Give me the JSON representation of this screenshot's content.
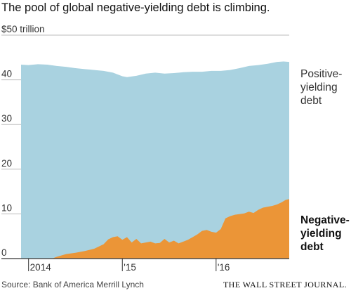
{
  "title": "The pool of global negative-yielding debt is climbing.",
  "source": "Source: Bank of America Merrill Lynch",
  "brand": "THE WALL STREET JOURNAL.",
  "colors": {
    "positive": "#a9d2e0",
    "negative": "#eb9537",
    "gridline": "#bbbbbb",
    "axis": "#333333"
  },
  "chart_data": {
    "type": "area",
    "stacked": true,
    "y_unit_label": "$50 trillion",
    "yticks": [
      0,
      10,
      20,
      30,
      40
    ],
    "ylim": [
      0,
      50
    ],
    "xlim": [
      2013.92,
      2016.78
    ],
    "xticks": [
      {
        "x": 2014.0,
        "label": "2014"
      },
      {
        "x": 2015.0,
        "label": "'15"
      },
      {
        "x": 2016.0,
        "label": "'16"
      }
    ],
    "grid": true,
    "series": [
      {
        "name": "Negative-yielding debt",
        "points": [
          [
            2013.92,
            0
          ],
          [
            2014.25,
            0
          ],
          [
            2014.3,
            0.4
          ],
          [
            2014.4,
            1.0
          ],
          [
            2014.5,
            1.3
          ],
          [
            2014.6,
            1.7
          ],
          [
            2014.7,
            2.2
          ],
          [
            2014.8,
            3.2
          ],
          [
            2014.85,
            4.3
          ],
          [
            2014.9,
            4.8
          ],
          [
            2014.95,
            5.0
          ],
          [
            2015.0,
            4.2
          ],
          [
            2015.05,
            4.8
          ],
          [
            2015.1,
            3.6
          ],
          [
            2015.15,
            4.4
          ],
          [
            2015.2,
            3.4
          ],
          [
            2015.25,
            3.6
          ],
          [
            2015.3,
            3.8
          ],
          [
            2015.35,
            3.4
          ],
          [
            2015.4,
            3.5
          ],
          [
            2015.45,
            4.4
          ],
          [
            2015.5,
            3.6
          ],
          [
            2015.55,
            4.0
          ],
          [
            2015.6,
            3.4
          ],
          [
            2015.65,
            3.8
          ],
          [
            2015.7,
            4.2
          ],
          [
            2015.75,
            4.8
          ],
          [
            2015.8,
            5.4
          ],
          [
            2015.85,
            6.2
          ],
          [
            2015.9,
            6.4
          ],
          [
            2015.95,
            6.0
          ],
          [
            2016.0,
            5.8
          ],
          [
            2016.05,
            6.6
          ],
          [
            2016.1,
            9.0
          ],
          [
            2016.15,
            9.5
          ],
          [
            2016.2,
            9.8
          ],
          [
            2016.3,
            10.1
          ],
          [
            2016.35,
            10.5
          ],
          [
            2016.4,
            10.2
          ],
          [
            2016.45,
            10.9
          ],
          [
            2016.5,
            11.4
          ],
          [
            2016.55,
            11.6
          ],
          [
            2016.6,
            11.8
          ],
          [
            2016.65,
            12.1
          ],
          [
            2016.7,
            12.6
          ],
          [
            2016.74,
            13.1
          ],
          [
            2016.78,
            13.3
          ]
        ]
      },
      {
        "name": "Positive-yielding debt",
        "total_points": [
          [
            2013.92,
            43.4
          ],
          [
            2014.0,
            43.3
          ],
          [
            2014.1,
            43.5
          ],
          [
            2014.2,
            43.4
          ],
          [
            2014.3,
            43.1
          ],
          [
            2014.4,
            42.9
          ],
          [
            2014.5,
            42.6
          ],
          [
            2014.6,
            42.4
          ],
          [
            2014.7,
            42.2
          ],
          [
            2014.8,
            42.0
          ],
          [
            2014.9,
            41.6
          ],
          [
            2015.0,
            40.8
          ],
          [
            2015.05,
            40.6
          ],
          [
            2015.15,
            40.9
          ],
          [
            2015.25,
            41.4
          ],
          [
            2015.35,
            41.6
          ],
          [
            2015.45,
            41.4
          ],
          [
            2015.55,
            41.5
          ],
          [
            2015.65,
            41.7
          ],
          [
            2015.75,
            41.8
          ],
          [
            2015.85,
            41.8
          ],
          [
            2015.95,
            42.0
          ],
          [
            2016.05,
            42.0
          ],
          [
            2016.15,
            42.2
          ],
          [
            2016.25,
            42.6
          ],
          [
            2016.35,
            43.1
          ],
          [
            2016.45,
            43.3
          ],
          [
            2016.55,
            43.6
          ],
          [
            2016.65,
            44.0
          ],
          [
            2016.72,
            44.1
          ],
          [
            2016.78,
            44.0
          ]
        ]
      }
    ],
    "labels": {
      "positive": [
        "Positive-",
        "yielding",
        "debt"
      ],
      "negative": [
        "Negative-",
        "yielding",
        "debt"
      ]
    }
  }
}
